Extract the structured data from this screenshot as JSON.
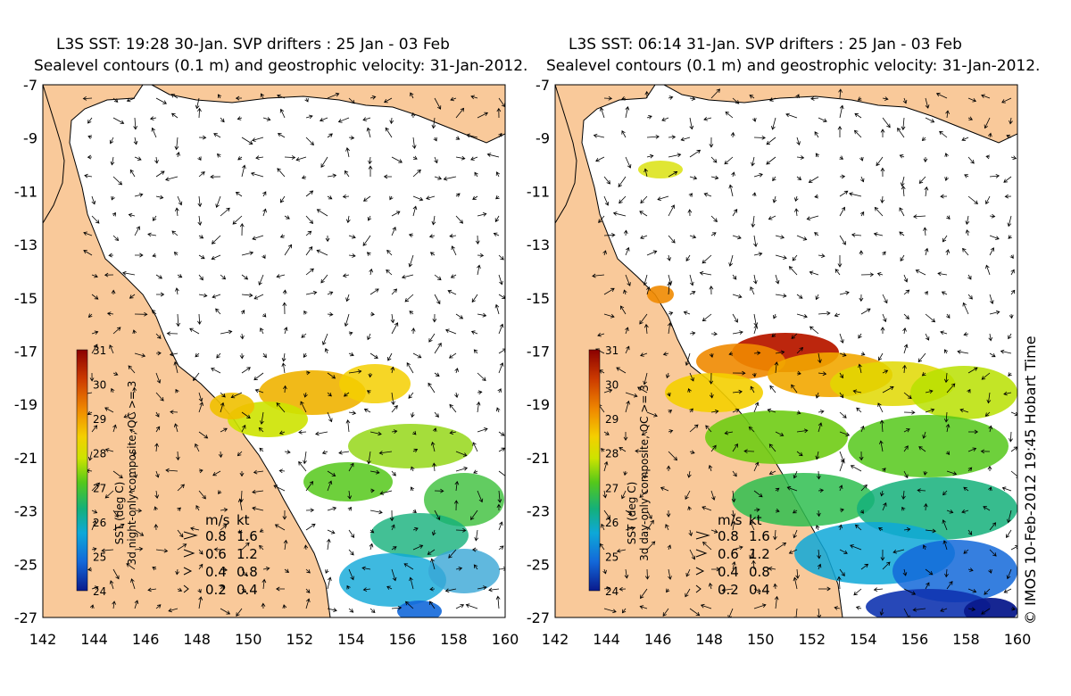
{
  "panels": [
    {
      "title_line1": "L3S SST: 19:28 30-Jan. SVP drifters : 25 Jan - 03 Feb",
      "title_line2": "Sealevel contours (0.1 m) and geostrophic velocity: 31-Jan-2012.",
      "colorbar_label": "SST (deg C)",
      "composite_label": "3d night-only composite, QC >= 3",
      "warm_fraction": 0.0
    },
    {
      "title_line1": "L3S SST: 06:14 31-Jan. SVP drifters : 25 Jan - 03 Feb",
      "title_line2": "Sealevel contours (0.1 m) and geostrophic velocity: 31-Jan-2012.",
      "colorbar_label": "SST (deg C)",
      "composite_label": "3d day-only composite, QC >= 3",
      "warm_fraction": 1.0
    }
  ],
  "y_ticks": [
    "-7",
    "-9",
    "-11",
    "-13",
    "-15",
    "-17",
    "-19",
    "-21",
    "-23",
    "-25",
    "-27"
  ],
  "x_ticks": [
    "142",
    "144",
    "146",
    "148",
    "150",
    "152",
    "154",
    "156",
    "158",
    "160"
  ],
  "colorbar_ticks": [
    "31",
    "30",
    "29",
    "28",
    "27",
    "26",
    "25",
    "24"
  ],
  "velocity_legend": {
    "header_ms": "m/s",
    "header_kt": "kt",
    "rows": [
      {
        "ms": "0.8",
        "kt": "1.6"
      },
      {
        "ms": "0.6",
        "kt": "1.2"
      },
      {
        "ms": "0.4",
        "kt": "0.8"
      },
      {
        "ms": "0.2",
        "kt": "0.4"
      }
    ]
  },
  "credit": "© IMOS 10-Feb-2012 19:45 Hobart Time",
  "colors": {
    "land": "#f9c99a",
    "ocean": "#ffffff",
    "sst_scale": [
      "#8b0000",
      "#cc3a00",
      "#f08a00",
      "#f4cf00",
      "#cde300",
      "#55c81a",
      "#14b07a",
      "#0ea8d8",
      "#1368d9",
      "#0a1a8c"
    ]
  },
  "map_extent": {
    "lon": [
      142,
      160
    ],
    "lat": [
      -27,
      -7
    ]
  }
}
